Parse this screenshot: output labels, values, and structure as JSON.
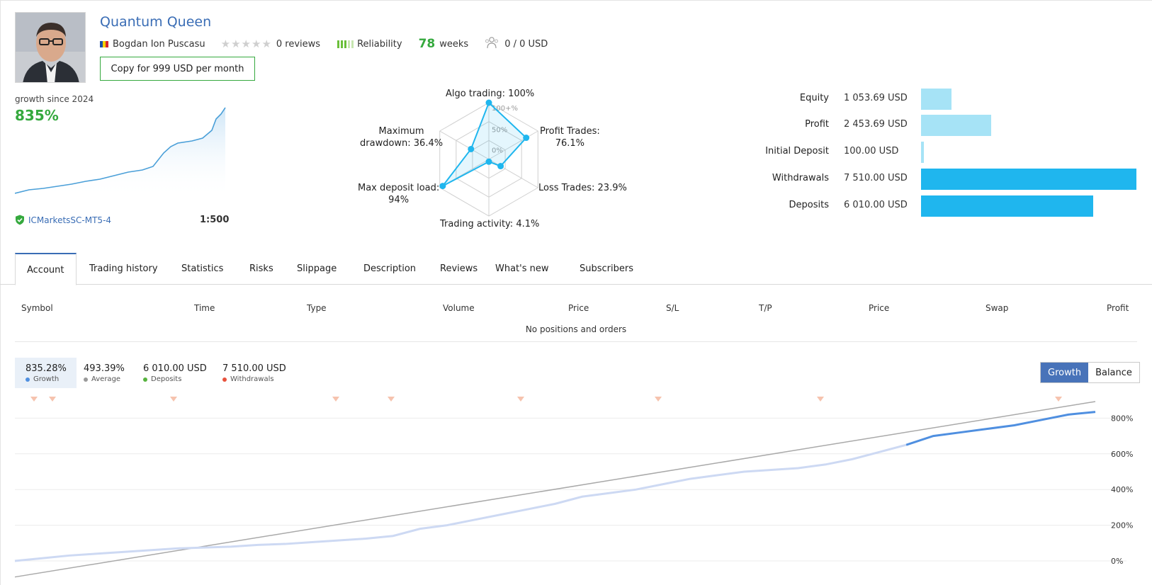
{
  "header": {
    "title": "Quantum Queen",
    "author": "Bogdan Ion Puscasu",
    "reviews": "0 reviews",
    "reliability": "Reliability",
    "weeks_value": "78",
    "weeks_label": "weeks",
    "subscribers": "0 / 0 USD",
    "copy_button": "Copy for 999 USD per month"
  },
  "growth_summary": {
    "label": "growth since 2024",
    "value": "835%",
    "broker": "ICMarketsSC-MT5-4",
    "leverage": "1:500"
  },
  "radar": {
    "labels": {
      "algo": "Algo trading: 100%",
      "profit_trades_1": "Profit Trades:",
      "profit_trades_2": "76.1%",
      "loss_trades": "Loss Trades: 23.9%",
      "activity": "Trading activity: 4.1%",
      "deposit_load_1": "Max deposit load:",
      "deposit_load_2": "94%",
      "drawdown_1": "Maximum",
      "drawdown_2": "drawdown: 36.4%"
    },
    "scale_labels": [
      "100+%",
      "50%",
      "0%"
    ],
    "values": {
      "algo": 100,
      "profit_trades": 76.1,
      "loss_trades": 23.9,
      "activity": 4.1,
      "deposit_load": 94,
      "drawdown": 36.4
    }
  },
  "stats": [
    {
      "name": "Equity",
      "value": "1 053.69 USD",
      "amount": 1053.69,
      "color": "#a6e3f6"
    },
    {
      "name": "Profit",
      "value": "2 453.69 USD",
      "amount": 2453.69,
      "color": "#a6e3f6"
    },
    {
      "name": "Initial Deposit",
      "value": "100.00 USD",
      "amount": 100.0,
      "color": "#a6e3f6"
    },
    {
      "name": "Withdrawals",
      "value": "7 510.00 USD",
      "amount": 7510.0,
      "color": "#1fb6ee"
    },
    {
      "name": "Deposits",
      "value": "6 010.00 USD",
      "amount": 6010.0,
      "color": "#1fb6ee"
    }
  ],
  "tabs": [
    "Account",
    "Trading history",
    "Statistics",
    "Risks",
    "Slippage",
    "Description",
    "Reviews",
    "What's new",
    "Subscribers"
  ],
  "table": {
    "columns": [
      "Symbol",
      "Time",
      "Type",
      "Volume",
      "Price",
      "S/L",
      "T/P",
      "Price",
      "Swap",
      "Profit"
    ],
    "empty_message": "No positions and orders"
  },
  "legend": [
    {
      "value": "835.28%",
      "name": "Growth",
      "color": "#4f8fe0"
    },
    {
      "value": "493.39%",
      "name": "Average",
      "color": "#9a9a9a"
    },
    {
      "value": "6 010.00 USD",
      "name": "Deposits",
      "color": "#57b33f"
    },
    {
      "value": "7 510.00 USD",
      "name": "Withdrawals",
      "color": "#e8523d"
    }
  ],
  "toggle": {
    "growth": "Growth",
    "balance": "Balance"
  },
  "chart_data": {
    "type": "line",
    "y_ticks": [
      "800%",
      "600%",
      "400%",
      "200%",
      "0%"
    ],
    "ylim": [
      0,
      900
    ],
    "series": [
      {
        "name": "Growth",
        "values": [
          0,
          15,
          30,
          40,
          50,
          60,
          70,
          75,
          80,
          90,
          95,
          105,
          115,
          125,
          140,
          180,
          200,
          230,
          260,
          290,
          320,
          360,
          380,
          400,
          430,
          460,
          480,
          500,
          510,
          520,
          540,
          570,
          610,
          650,
          700,
          720,
          740,
          760,
          790,
          820,
          835
        ]
      },
      {
        "name": "Average",
        "values": [
          -90,
          893
        ]
      }
    ]
  },
  "colors": {
    "accent": "#3a6db5",
    "green": "#35a93e",
    "bar_light": "#a6e3f6",
    "bar_dark": "#1fb6ee"
  },
  "icons": {
    "shield": "shield-check-icon",
    "stars": "star-icon",
    "subscribers": "people-icon"
  }
}
